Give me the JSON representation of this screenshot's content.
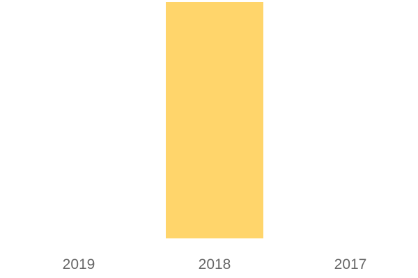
{
  "chart_data": {
    "type": "bar",
    "categories": [
      "2019",
      "2018",
      "2017"
    ],
    "values": [
      0,
      1,
      0
    ],
    "ylim": [
      0,
      1
    ],
    "title": "",
    "xlabel": "",
    "ylabel": "",
    "grid": false,
    "bar_color": "#FFD56B",
    "tick_color": "#666666"
  }
}
